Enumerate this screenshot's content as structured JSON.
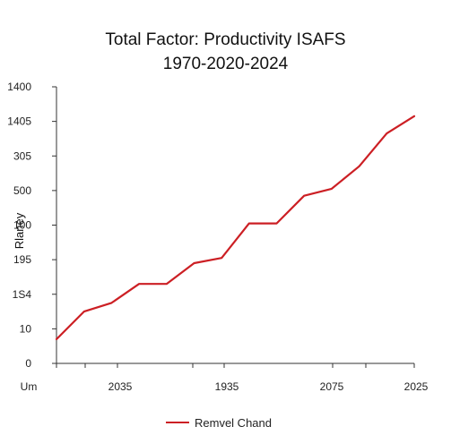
{
  "chart_data": {
    "type": "line",
    "title": "Total Factor: Productivity ISAFS",
    "subtitle": "1970-2020-2024",
    "ylabel": "Rlaney",
    "xlabel": "",
    "x_ticks": [
      "Um",
      "2035",
      "1935",
      "2075",
      "2025"
    ],
    "y_ticks": [
      "0",
      "10",
      "1S4",
      "195",
      "100",
      "500",
      "305",
      "1405",
      "1400"
    ],
    "grid": false,
    "legend_position": "bottom",
    "series": [
      {
        "name": "Remvel Chand",
        "color": "#cc1f24",
        "x": [
          0,
          1,
          2,
          3,
          4,
          5,
          6,
          7,
          8,
          9,
          10,
          11,
          12,
          13
        ],
        "y": [
          0.7,
          1.5,
          1.75,
          2.3,
          2.3,
          2.9,
          3.05,
          4.05,
          4.05,
          4.85,
          5.05,
          5.7,
          6.65,
          7.15
        ]
      }
    ],
    "ylim": [
      0,
      8
    ],
    "xlim": [
      0,
      13
    ]
  }
}
